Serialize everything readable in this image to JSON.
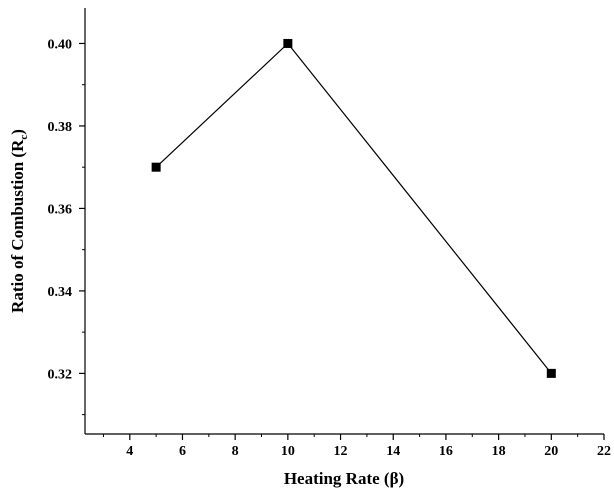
{
  "chart_data": {
    "type": "line",
    "title": "",
    "xlabel": "Heating Rate (β)",
    "ylabel_main": "Ratio of Combustion (R",
    "ylabel_sub": "c",
    "ylabel_close": ")",
    "x": [
      5,
      10,
      20
    ],
    "series": [
      {
        "values": [
          0.37,
          0.4,
          0.32
        ],
        "color": "#000000",
        "marker": "square"
      }
    ],
    "xlim": [
      2.3,
      22
    ],
    "ylim": [
      0.3053,
      0.4086
    ],
    "xticks": [
      4,
      6,
      8,
      10,
      12,
      14,
      16,
      18,
      20,
      22
    ],
    "xtick_labels": [
      "4",
      "6",
      "8",
      "10",
      "12",
      "14",
      "16",
      "18",
      "20",
      "22"
    ],
    "yticks": [
      0.32,
      0.34,
      0.36,
      0.38,
      0.4
    ],
    "ytick_labels": [
      "0.32",
      "0.34",
      "0.36",
      "0.38",
      "0.40"
    ],
    "grid": false,
    "legend": false
  }
}
